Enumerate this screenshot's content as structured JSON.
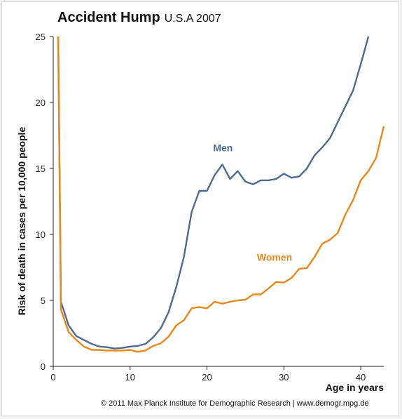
{
  "title": "Accident Hump",
  "subtitle": "U.S.A 2007",
  "footer": {
    "credit": "© 2011 Max Planck Institute for Demographic Research",
    "separator": "|",
    "url": "www.demogr.mpg.de"
  },
  "chart_data": {
    "type": "line",
    "xlabel": "Age in years",
    "ylabel": "Risk of death in cases per 10,000 people",
    "xlim": [
      0,
      43
    ],
    "ylim": [
      0,
      25
    ],
    "xticks": [
      0,
      10,
      20,
      30,
      40
    ],
    "yticks": [
      0,
      5,
      10,
      15,
      20,
      25
    ],
    "grid": false,
    "legend": "inline labels on curves",
    "series": [
      {
        "name": "Men",
        "color": "#4f6a8f",
        "x": [
          0.65,
          1,
          2,
          3,
          4,
          5,
          6,
          7,
          8,
          9,
          10,
          11,
          12,
          13,
          14,
          15,
          16,
          17,
          18,
          19,
          20,
          21,
          22,
          23,
          24,
          25,
          26,
          27,
          28,
          29,
          30,
          31,
          32,
          33,
          34,
          35,
          36,
          37,
          38,
          39,
          40,
          41
        ],
        "y": [
          25,
          4.9,
          3.1,
          2.3,
          2.0,
          1.7,
          1.5,
          1.45,
          1.35,
          1.4,
          1.5,
          1.55,
          1.7,
          2.2,
          2.9,
          4.1,
          6.0,
          8.3,
          11.7,
          13.3,
          13.3,
          14.5,
          15.3,
          14.2,
          14.8,
          14.0,
          13.8,
          14.1,
          14.1,
          14.2,
          14.6,
          14.3,
          14.4,
          15.0,
          16.0,
          16.6,
          17.3,
          18.5,
          19.7,
          20.9,
          22.9,
          25
        ]
      },
      {
        "name": "Women",
        "color": "#e5891f",
        "x": [
          0.65,
          1,
          2,
          3,
          4,
          5,
          6,
          7,
          8,
          9,
          10,
          11,
          12,
          13,
          14,
          15,
          16,
          17,
          18,
          19,
          20,
          21,
          22,
          23,
          24,
          25,
          26,
          27,
          28,
          29,
          30,
          31,
          32,
          33,
          34,
          35,
          36,
          37,
          38,
          39,
          40,
          41,
          42,
          43
        ],
        "y": [
          25,
          4.3,
          2.6,
          2.0,
          1.5,
          1.25,
          1.25,
          1.2,
          1.2,
          1.2,
          1.25,
          1.1,
          1.2,
          1.55,
          1.75,
          2.25,
          3.1,
          3.5,
          4.4,
          4.5,
          4.4,
          4.9,
          4.75,
          4.9,
          5.0,
          5.05,
          5.45,
          5.45,
          5.9,
          6.4,
          6.35,
          6.7,
          7.4,
          7.45,
          8.3,
          9.3,
          9.6,
          10.1,
          11.5,
          12.6,
          14.1,
          14.8,
          15.8,
          18.2
        ]
      }
    ]
  }
}
